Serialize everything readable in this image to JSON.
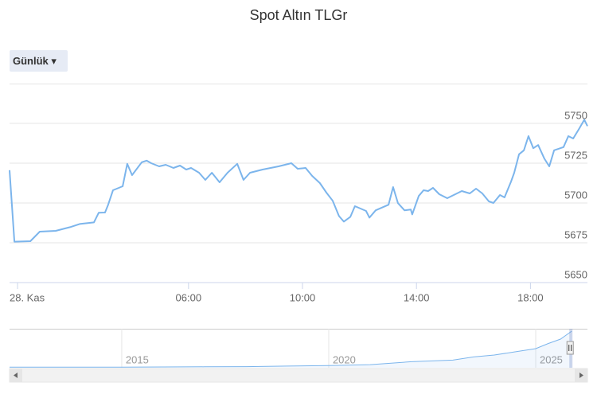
{
  "controls": {
    "range_button": "Günlük"
  },
  "chart_data": [
    {
      "type": "line",
      "title": "Spot Altın TLGr",
      "x": [
        -0.28,
        -0.11,
        0.45,
        0.78,
        1.34,
        1.84,
        2.18,
        2.68,
        2.85,
        3.07,
        3.18,
        3.35,
        3.69,
        3.85,
        4.02,
        4.36,
        4.53,
        4.69,
        4.97,
        5.2,
        5.47,
        5.7,
        5.92,
        6.09,
        6.37,
        6.59,
        6.82,
        7.09,
        7.37,
        7.71,
        7.93,
        8.16,
        8.6,
        9.16,
        9.61,
        9.83,
        10.11,
        10.34,
        10.61,
        10.84,
        11.06,
        11.28,
        11.45,
        11.68,
        11.84,
        12.23,
        12.35,
        12.57,
        13.02,
        13.18,
        13.35,
        13.58,
        13.8,
        13.85,
        14.08,
        14.25,
        14.41,
        14.58,
        14.8,
        15.08,
        15.59,
        15.87,
        16.09,
        16.31,
        16.54,
        16.7,
        16.93,
        17.09,
        17.32,
        17.43,
        17.6,
        17.77,
        17.93,
        18.1,
        18.27,
        18.49,
        18.66,
        18.83,
        19.16,
        19.33,
        19.5,
        19.72,
        19.89,
        20.0
      ],
      "series": [
        {
          "name": "Spot Altın TLGr",
          "color": "#7cb5ec",
          "values": [
            5720.6,
            5675.7,
            5676.0,
            5682.0,
            5682.5,
            5684.8,
            5686.8,
            5687.8,
            5693.9,
            5694.0,
            5698.9,
            5708.0,
            5710.5,
            5724.6,
            5717.5,
            5725.6,
            5726.6,
            5725.0,
            5723.0,
            5724.0,
            5722.0,
            5723.5,
            5721.0,
            5722.0,
            5719.0,
            5714.5,
            5719.0,
            5713.0,
            5719.0,
            5724.6,
            5714.5,
            5719.0,
            5721.0,
            5723.0,
            5725.0,
            5721.5,
            5722.0,
            5717.0,
            5712.5,
            5706.5,
            5701.4,
            5691.8,
            5688.3,
            5691.3,
            5698.0,
            5695.0,
            5690.8,
            5695.4,
            5698.9,
            5710.0,
            5699.9,
            5695.4,
            5695.9,
            5692.8,
            5704.4,
            5708.0,
            5707.5,
            5709.5,
            5705.5,
            5703.0,
            5707.5,
            5706.0,
            5709.0,
            5706.0,
            5701.0,
            5700.0,
            5705.0,
            5703.5,
            5713.5,
            5719.0,
            5730.6,
            5733.1,
            5742.0,
            5734.4,
            5736.4,
            5727.8,
            5723.0,
            5733.1,
            5735.1,
            5742.0,
            5740.5,
            5747.0,
            5752.3,
            5748.3
          ]
        }
      ],
      "xlim": [
        -0.28,
        20.0
      ],
      "xticks": [
        {
          "value": 0,
          "label": "28. Kas"
        },
        {
          "value": 6,
          "label": "06:00"
        },
        {
          "value": 10,
          "label": "10:00"
        },
        {
          "value": 14,
          "label": "14:00"
        },
        {
          "value": 18,
          "label": "18:00"
        }
      ],
      "ylim": [
        5650,
        5775
      ],
      "yticks": [
        5650,
        5675,
        5700,
        5725,
        5750
      ],
      "grid": true
    },
    {
      "type": "area",
      "x": [
        2012.29,
        2013,
        2014,
        2015,
        2016,
        2017,
        2018,
        2019,
        2020,
        2021,
        2022,
        2023,
        2023.5,
        2024,
        2024.5,
        2025,
        2025.3,
        2025.6,
        2025.87
      ],
      "series": [
        {
          "name": "Spot Altın TLGr",
          "color": "#7cb5ec",
          "values": [
            95,
            90,
            88,
            100,
            120,
            150,
            170,
            260,
            350,
            480,
            950,
            1200,
            1700,
            2000,
            2500,
            3000,
            3800,
            4500,
            5750
          ]
        }
      ],
      "xlim": [
        2012.29,
        2026.25
      ],
      "xticks": [
        2015,
        2020,
        2025
      ],
      "ylim": [
        0,
        5750
      ],
      "grid": true
    }
  ]
}
